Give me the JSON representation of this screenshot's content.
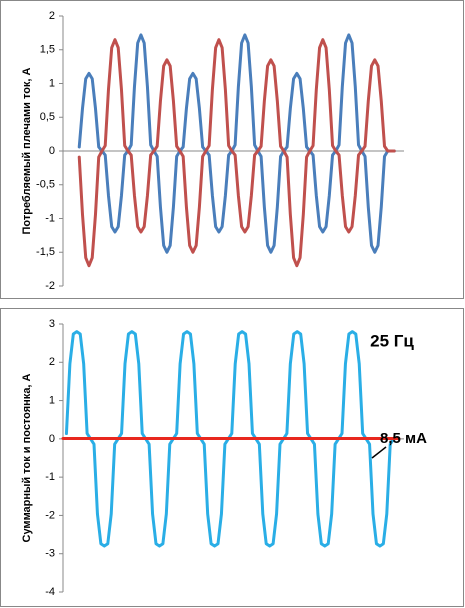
{
  "chart_data": [
    {
      "type": "line",
      "y_label": "Потребляемый плечами ток, А",
      "x": [
        0,
        1,
        2,
        3,
        4,
        5,
        6,
        7,
        8,
        9,
        10,
        11,
        12,
        13,
        14,
        15,
        16,
        17,
        18,
        19,
        20,
        21,
        22,
        23,
        24,
        25,
        26,
        27,
        28,
        29,
        30,
        31,
        32,
        33,
        34,
        35,
        36,
        37,
        38,
        39,
        40,
        41,
        42,
        43,
        44,
        45,
        46,
        47,
        48,
        49,
        50,
        51,
        52,
        53,
        54,
        55,
        56,
        57,
        58,
        59,
        60,
        61,
        62,
        63,
        64,
        65,
        66,
        67,
        68,
        69,
        70,
        71,
        72,
        73,
        74,
        75,
        76,
        77,
        78,
        79,
        80,
        81,
        82,
        83,
        84,
        85,
        86,
        87,
        88,
        89,
        90,
        91,
        92,
        93,
        94,
        95,
        96,
        97
      ],
      "xlim": [
        -5,
        100
      ],
      "ylim": [
        -2,
        2
      ],
      "yticks": [
        2,
        {
          "value": 1.5,
          "label": "1,5"
        },
        1,
        {
          "value": 0.5,
          "label": "0,5"
        },
        0,
        {
          "value": -0.5,
          "label": "-0,5"
        },
        -1,
        {
          "value": -1.5,
          "label": "-1,5"
        },
        -2
      ],
      "series": [
        {
          "color": "#4a7ebb",
          "values": [
            0.06,
            0.63,
            1.07,
            1.15,
            1.07,
            0.63,
            0.06,
            0,
            -0.06,
            -0.66,
            -1.12,
            -1.2,
            -1.12,
            -0.66,
            -0.06,
            0,
            0.09,
            0.95,
            1.6,
            1.72,
            1.6,
            0.95,
            0.09,
            0,
            -0.08,
            -0.83,
            -1.4,
            -1.5,
            -1.4,
            -0.83,
            -0.08,
            0,
            0.06,
            0.63,
            1.07,
            1.15,
            1.07,
            0.63,
            0.06,
            0,
            -0.06,
            -0.66,
            -1.12,
            -1.2,
            -1.12,
            -0.66,
            -0.06,
            0,
            0.09,
            0.95,
            1.6,
            1.72,
            1.6,
            0.95,
            0.09,
            0,
            -0.08,
            -0.83,
            -1.4,
            -1.5,
            -1.4,
            -0.83,
            -0.08,
            0,
            0.06,
            0.63,
            1.07,
            1.15,
            1.07,
            0.63,
            0.06,
            0,
            -0.06,
            -0.66,
            -1.12,
            -1.2,
            -1.12,
            -0.66,
            -0.06,
            0,
            0.09,
            0.95,
            1.6,
            1.72,
            1.6,
            0.95,
            0.09,
            0,
            -0.08,
            -0.83,
            -1.4,
            -1.5,
            -1.4,
            -0.83,
            -0.08,
            0,
            0,
            0
          ]
        },
        {
          "color": "#c0504d",
          "values": [
            -0.09,
            -0.94,
            -1.58,
            -1.7,
            -1.58,
            -0.94,
            -0.09,
            0,
            0.08,
            0.91,
            1.53,
            1.65,
            1.53,
            0.91,
            0.08,
            0,
            -0.06,
            -0.66,
            -1.12,
            -1.2,
            -1.12,
            -0.66,
            -0.06,
            0,
            0.07,
            0.74,
            1.26,
            1.35,
            1.26,
            0.74,
            0.07,
            0,
            -0.08,
            -0.83,
            -1.4,
            -1.5,
            -1.4,
            -0.83,
            -0.08,
            0,
            0.08,
            0.91,
            1.53,
            1.65,
            1.53,
            0.91,
            0.08,
            0,
            -0.06,
            -0.66,
            -1.12,
            -1.2,
            -1.12,
            -0.66,
            -0.06,
            0,
            0.07,
            0.74,
            1.26,
            1.35,
            1.26,
            0.74,
            0.07,
            0,
            -0.09,
            -0.94,
            -1.58,
            -1.7,
            -1.58,
            -0.94,
            -0.09,
            0,
            0.08,
            0.91,
            1.53,
            1.65,
            1.53,
            0.91,
            0.08,
            0,
            -0.06,
            -0.66,
            -1.12,
            -1.2,
            -1.12,
            -0.66,
            -0.06,
            0,
            0.07,
            0.74,
            1.26,
            1.35,
            1.26,
            0.74,
            0.07,
            0,
            0,
            0
          ]
        }
      ]
    },
    {
      "type": "line",
      "y_label": "Суммарный ток и постоянка, А",
      "annotations": [
        "25 Гц",
        "8,5 мА"
      ],
      "x": [
        0,
        1,
        2,
        3,
        4,
        5,
        6,
        7,
        8,
        9,
        10,
        11,
        12,
        13,
        14,
        15,
        16,
        17,
        18,
        19,
        20,
        21,
        22,
        23,
        24,
        25,
        26,
        27,
        28,
        29,
        30,
        31,
        32,
        33,
        34,
        35,
        36,
        37,
        38,
        39,
        40,
        41,
        42,
        43,
        44,
        45,
        46,
        47,
        48,
        49,
        50,
        51,
        52,
        53,
        54,
        55,
        56,
        57,
        58,
        59,
        60,
        61,
        62,
        63,
        64,
        65,
        66,
        67,
        68,
        69,
        70,
        71,
        72,
        73,
        74,
        75,
        76,
        77,
        78,
        79,
        80,
        81,
        82,
        83,
        84,
        85,
        86,
        87,
        88,
        89,
        90,
        91,
        92,
        93,
        94,
        95
      ],
      "xlim": [
        -1,
        98
      ],
      "ylim": [
        -4,
        3
      ],
      "yticks": [
        3,
        2,
        1,
        0,
        -1,
        -2,
        -3,
        -4
      ],
      "series": [
        {
          "color": "#2aaee6",
          "values": [
            0.14,
            1.96,
            2.74,
            2.8,
            2.74,
            1.96,
            0.14,
            0,
            -0.14,
            -1.96,
            -2.74,
            -2.8,
            -2.74,
            -1.96,
            -0.14,
            0,
            0.14,
            1.96,
            2.74,
            2.8,
            2.74,
            1.96,
            0.14,
            0,
            -0.14,
            -1.96,
            -2.74,
            -2.8,
            -2.74,
            -1.96,
            -0.14,
            0,
            0.14,
            1.96,
            2.74,
            2.8,
            2.74,
            1.96,
            0.14,
            0,
            -0.14,
            -1.96,
            -2.74,
            -2.8,
            -2.74,
            -1.96,
            -0.14,
            0,
            0.14,
            1.96,
            2.74,
            2.8,
            2.74,
            1.96,
            0.14,
            0,
            -0.14,
            -1.96,
            -2.74,
            -2.8,
            -2.74,
            -1.96,
            -0.14,
            0,
            0.14,
            1.96,
            2.74,
            2.8,
            2.74,
            1.96,
            0.14,
            0,
            -0.14,
            -1.96,
            -2.74,
            -2.8,
            -2.74,
            -1.96,
            -0.14,
            0,
            0.14,
            1.96,
            2.74,
            2.8,
            2.74,
            1.96,
            0.14,
            0,
            -0.14,
            -1.96,
            -2.74,
            -2.8,
            -2.74,
            -1.96,
            -0.14,
            0
          ]
        },
        {
          "color": "#e8281e",
          "x": [
            -1,
            96.5
          ],
          "values": [
            0.0085,
            0.0085
          ]
        }
      ]
    }
  ]
}
